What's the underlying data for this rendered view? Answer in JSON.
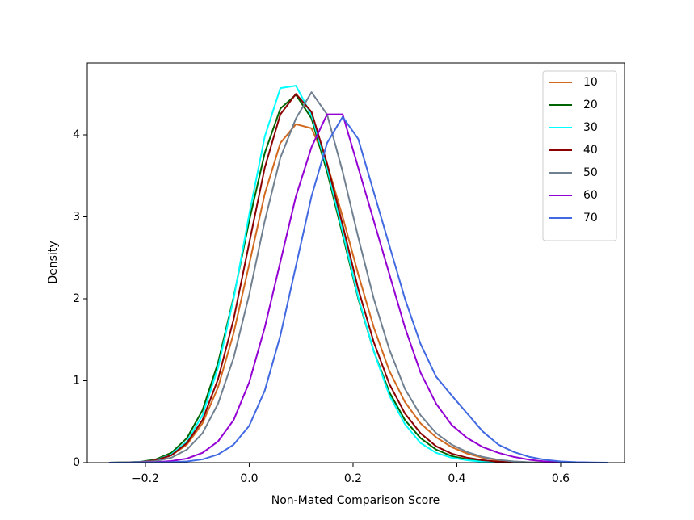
{
  "chart_data": {
    "type": "line",
    "xlabel": "Non-Mated Comparison Score",
    "ylabel": "Density",
    "x": [
      -0.27,
      -0.24,
      -0.21,
      -0.18,
      -0.15,
      -0.12,
      -0.09,
      -0.06,
      -0.03,
      0.0,
      0.03,
      0.06,
      0.09,
      0.12,
      0.15,
      0.18,
      0.21,
      0.24,
      0.27,
      0.3,
      0.33,
      0.36,
      0.39,
      0.42,
      0.45,
      0.48,
      0.51,
      0.54,
      0.57,
      0.6,
      0.63,
      0.66,
      0.69
    ],
    "series": [
      {
        "name": "10",
        "color": "#d2691e",
        "values": [
          0,
          0.003,
          0.01,
          0.03,
          0.09,
          0.22,
          0.48,
          0.92,
          1.58,
          2.42,
          3.28,
          3.9,
          4.13,
          4.08,
          3.65,
          3.0,
          2.3,
          1.65,
          1.12,
          0.74,
          0.48,
          0.31,
          0.19,
          0.11,
          0.06,
          0.03,
          0.012,
          0.004,
          0,
          0,
          0,
          0,
          0
        ]
      },
      {
        "name": "20",
        "color": "#006400",
        "values": [
          0,
          0.003,
          0.01,
          0.04,
          0.12,
          0.3,
          0.64,
          1.22,
          2.02,
          2.95,
          3.78,
          4.32,
          4.49,
          4.2,
          3.55,
          2.78,
          2.0,
          1.36,
          0.86,
          0.52,
          0.3,
          0.16,
          0.08,
          0.04,
          0.015,
          0.005,
          0,
          0,
          0,
          0,
          0,
          0,
          0
        ]
      },
      {
        "name": "30",
        "color": "#00ffff",
        "values": [
          0,
          0.003,
          0.01,
          0.03,
          0.1,
          0.26,
          0.58,
          1.16,
          2.0,
          3.03,
          3.98,
          4.57,
          4.6,
          4.24,
          3.6,
          2.82,
          2.02,
          1.36,
          0.82,
          0.47,
          0.24,
          0.12,
          0.06,
          0.03,
          0.01,
          0.005,
          0,
          0,
          0,
          0,
          0,
          0,
          0
        ]
      },
      {
        "name": "40",
        "color": "#8b0000",
        "values": [
          0,
          0.002,
          0.008,
          0.03,
          0.09,
          0.24,
          0.52,
          1.02,
          1.75,
          2.68,
          3.6,
          4.25,
          4.5,
          4.28,
          3.65,
          2.9,
          2.12,
          1.47,
          0.96,
          0.6,
          0.36,
          0.2,
          0.11,
          0.06,
          0.03,
          0.012,
          0.005,
          0,
          0,
          0,
          0,
          0,
          0
        ]
      },
      {
        "name": "50",
        "color": "#708090",
        "values": [
          0,
          0.002,
          0.006,
          0.02,
          0.06,
          0.16,
          0.36,
          0.72,
          1.28,
          2.05,
          2.95,
          3.72,
          4.2,
          4.52,
          4.25,
          3.55,
          2.75,
          2.0,
          1.38,
          0.9,
          0.58,
          0.36,
          0.22,
          0.13,
          0.07,
          0.035,
          0.015,
          0.005,
          0,
          0,
          0,
          0,
          0
        ]
      },
      {
        "name": "60",
        "color": "#9400d3",
        "values": [
          0,
          0,
          0.002,
          0.006,
          0.02,
          0.05,
          0.12,
          0.26,
          0.52,
          0.98,
          1.65,
          2.45,
          3.25,
          3.85,
          4.25,
          4.25,
          3.6,
          2.95,
          2.3,
          1.65,
          1.1,
          0.72,
          0.46,
          0.3,
          0.19,
          0.12,
          0.07,
          0.035,
          0.015,
          0.006,
          0.002,
          0,
          0
        ]
      },
      {
        "name": "70",
        "color": "#4169e1",
        "values": [
          0,
          0,
          0,
          0.002,
          0.006,
          0.015,
          0.04,
          0.1,
          0.22,
          0.45,
          0.88,
          1.55,
          2.4,
          3.25,
          3.9,
          4.22,
          3.95,
          3.3,
          2.65,
          2.0,
          1.45,
          1.05,
          0.82,
          0.6,
          0.38,
          0.22,
          0.13,
          0.07,
          0.035,
          0.015,
          0.006,
          0.002,
          0
        ]
      }
    ],
    "xlim": [
      -0.312,
      0.723
    ],
    "ylim": [
      0,
      4.877
    ],
    "xticks": [
      {
        "value": -0.2,
        "label": "−0.2"
      },
      {
        "value": 0,
        "label": "0.0"
      },
      0.2,
      0.4,
      0.6
    ],
    "yticks": [
      0,
      1,
      2,
      3,
      4
    ],
    "legend": "upper right"
  }
}
